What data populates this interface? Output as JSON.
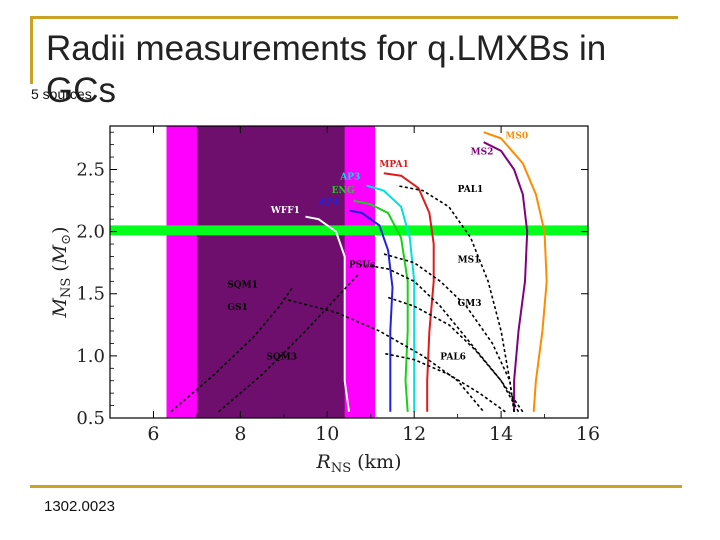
{
  "slide": {
    "title": "Radii measurements for q.LMXBs in GCs",
    "subtitle": "5 sources",
    "footer": "1302.0023"
  },
  "colors": {
    "rule": "#c9a226",
    "magenta": "#ff00ff",
    "purple": "#6e0f6e",
    "green_band": "#00ff1a"
  },
  "chart_data": {
    "type": "line",
    "xlabel": "R_NS (km)",
    "ylabel": "M_NS (M_⊙)",
    "xlim": [
      5,
      16
    ],
    "ylim": [
      0.5,
      2.85
    ],
    "xticks": [
      "6",
      "8",
      "10",
      "12",
      "14",
      "16"
    ],
    "yticks": [
      "0.5",
      "1.0",
      "1.5",
      "2.0",
      "2.5"
    ],
    "bands": [
      {
        "name": "magenta_band",
        "x": [
          6.3,
          11.1
        ],
        "color": "#ff00ff"
      },
      {
        "name": "purple_band",
        "x": [
          7.0,
          10.4
        ],
        "color": "#6e0f6e"
      },
      {
        "name": "green_band",
        "y": [
          1.97,
          2.05
        ],
        "color": "#00ff1a"
      }
    ],
    "series": [
      {
        "name": "MS0",
        "color": "#ff8c00",
        "style": "solid",
        "points": [
          [
            14.75,
            0.55
          ],
          [
            14.8,
            0.8
          ],
          [
            14.95,
            1.2
          ],
          [
            15.05,
            1.6
          ],
          [
            15.0,
            2.0
          ],
          [
            14.8,
            2.3
          ],
          [
            14.5,
            2.55
          ],
          [
            14.0,
            2.75
          ],
          [
            13.6,
            2.8
          ]
        ]
      },
      {
        "name": "MS2",
        "color": "#800080",
        "style": "solid",
        "points": [
          [
            14.3,
            0.55
          ],
          [
            14.3,
            0.8
          ],
          [
            14.4,
            1.2
          ],
          [
            14.55,
            1.6
          ],
          [
            14.6,
            2.0
          ],
          [
            14.5,
            2.3
          ],
          [
            14.3,
            2.5
          ],
          [
            14.0,
            2.65
          ],
          [
            13.6,
            2.72
          ]
        ]
      },
      {
        "name": "MPA1",
        "color": "#e01b1b",
        "style": "solid",
        "points": [
          [
            12.3,
            0.55
          ],
          [
            12.3,
            0.8
          ],
          [
            12.35,
            1.2
          ],
          [
            12.45,
            1.6
          ],
          [
            12.45,
            1.9
          ],
          [
            12.35,
            2.15
          ],
          [
            12.1,
            2.35
          ],
          [
            11.7,
            2.45
          ],
          [
            11.3,
            2.47
          ]
        ]
      },
      {
        "name": "AP3",
        "color": "#00e0e0",
        "style": "solid",
        "points": [
          [
            12.0,
            0.55
          ],
          [
            12.0,
            0.8
          ],
          [
            12.0,
            1.2
          ],
          [
            12.0,
            1.6
          ],
          [
            11.9,
            1.95
          ],
          [
            11.7,
            2.2
          ],
          [
            11.3,
            2.33
          ],
          [
            10.9,
            2.37
          ]
        ]
      },
      {
        "name": "ENG",
        "color": "#19d019",
        "style": "solid",
        "points": [
          [
            11.85,
            0.55
          ],
          [
            11.8,
            0.8
          ],
          [
            11.85,
            1.2
          ],
          [
            11.85,
            1.6
          ],
          [
            11.7,
            1.95
          ],
          [
            11.4,
            2.15
          ],
          [
            11.0,
            2.22
          ],
          [
            10.6,
            2.25
          ]
        ]
      },
      {
        "name": "AP4",
        "color": "#2222dd",
        "style": "solid",
        "points": [
          [
            11.45,
            0.55
          ],
          [
            11.45,
            0.8
          ],
          [
            11.45,
            1.2
          ],
          [
            11.5,
            1.55
          ],
          [
            11.4,
            1.85
          ],
          [
            11.2,
            2.05
          ],
          [
            10.8,
            2.15
          ],
          [
            10.5,
            2.17
          ]
        ]
      },
      {
        "name": "WFF1",
        "color": "#ffffff",
        "style": "solid",
        "points": [
          [
            10.5,
            0.55
          ],
          [
            10.4,
            0.8
          ],
          [
            10.4,
            1.2
          ],
          [
            10.4,
            1.5
          ],
          [
            10.4,
            1.8
          ],
          [
            10.2,
            2.0
          ],
          [
            9.8,
            2.1
          ],
          [
            9.5,
            2.12
          ]
        ]
      },
      {
        "name": "PAL1",
        "color": "#000000",
        "style": "dashed",
        "points": [
          [
            14.3,
            0.55
          ],
          [
            14.2,
            0.8
          ],
          [
            14.0,
            1.2
          ],
          [
            13.7,
            1.6
          ],
          [
            13.3,
            1.95
          ],
          [
            12.8,
            2.2
          ],
          [
            12.2,
            2.33
          ],
          [
            11.6,
            2.37
          ]
        ]
      },
      {
        "name": "MS1",
        "color": "#000000",
        "style": "dashed",
        "points": [
          [
            14.3,
            0.55
          ],
          [
            14.2,
            0.8
          ],
          [
            13.8,
            1.1
          ],
          [
            13.2,
            1.4
          ],
          [
            12.6,
            1.6
          ],
          [
            12.0,
            1.75
          ],
          [
            11.3,
            1.82
          ]
        ]
      },
      {
        "name": "GM3",
        "color": "#000000",
        "style": "dashed",
        "points": [
          [
            14.4,
            0.55
          ],
          [
            14.0,
            0.8
          ],
          [
            13.4,
            1.05
          ],
          [
            12.8,
            1.25
          ],
          [
            12.0,
            1.4
          ],
          [
            11.4,
            1.47
          ]
        ]
      },
      {
        "name": "PAL6",
        "color": "#000000",
        "style": "dashed",
        "points": [
          [
            14.1,
            0.55
          ],
          [
            13.5,
            0.7
          ],
          [
            12.8,
            0.85
          ],
          [
            12.0,
            0.97
          ],
          [
            11.3,
            1.02
          ]
        ]
      },
      {
        "name": "PSUs",
        "color": "#000000",
        "style": "dashed",
        "points": [
          [
            14.5,
            0.55
          ],
          [
            14.0,
            0.8
          ],
          [
            13.3,
            1.1
          ],
          [
            12.6,
            1.4
          ],
          [
            12.0,
            1.6
          ],
          [
            11.4,
            1.7
          ],
          [
            10.9,
            1.73
          ]
        ]
      },
      {
        "name": "SQM1",
        "color": "#000000",
        "style": "dashed",
        "points": [
          [
            6.4,
            0.55
          ],
          [
            7.4,
            0.85
          ],
          [
            8.3,
            1.15
          ],
          [
            8.9,
            1.4
          ],
          [
            9.2,
            1.55
          ]
        ]
      },
      {
        "name": "GS1",
        "color": "#000000",
        "style": "dashed",
        "points": [
          [
            9.1,
            1.45
          ],
          [
            10.2,
            1.35
          ],
          [
            11.2,
            1.2
          ],
          [
            12.2,
            1.0
          ],
          [
            13.0,
            0.8
          ],
          [
            13.6,
            0.55
          ]
        ]
      },
      {
        "name": "SQM3",
        "color": "#000000",
        "style": "dashed",
        "points": [
          [
            7.5,
            0.55
          ],
          [
            8.5,
            0.85
          ],
          [
            9.5,
            1.2
          ],
          [
            10.3,
            1.5
          ],
          [
            10.7,
            1.65
          ]
        ]
      }
    ],
    "labels": [
      {
        "text": "MS0",
        "color": "#ff8c00",
        "at": [
          14.1,
          2.75
        ]
      },
      {
        "text": "MS2",
        "color": "#800080",
        "at": [
          13.3,
          2.62
        ]
      },
      {
        "text": "MPA1",
        "color": "#e01b1b",
        "at": [
          11.2,
          2.52
        ]
      },
      {
        "text": "AP3",
        "color": "#00e0e0",
        "at": [
          10.3,
          2.42
        ]
      },
      {
        "text": "ENG",
        "color": "#19d019",
        "at": [
          10.1,
          2.31
        ]
      },
      {
        "text": "AP4",
        "color": "#2222dd",
        "at": [
          9.8,
          2.22
        ]
      },
      {
        "text": "WFF1",
        "color": "#ffffff",
        "at": [
          8.7,
          2.15
        ]
      },
      {
        "text": "PAL1",
        "color": "#000000",
        "at": [
          13.0,
          2.32
        ]
      },
      {
        "text": "PSUs",
        "color": "#000000",
        "at": [
          10.5,
          1.71
        ]
      },
      {
        "text": "MS1",
        "color": "#000000",
        "at": [
          13.0,
          1.75
        ]
      },
      {
        "text": "SQM1",
        "color": "#000000",
        "at": [
          7.7,
          1.55
        ]
      },
      {
        "text": "GS1",
        "color": "#000000",
        "at": [
          7.7,
          1.37
        ]
      },
      {
        "text": "GM3",
        "color": "#000000",
        "at": [
          13.0,
          1.4
        ]
      },
      {
        "text": "SQM3",
        "color": "#000000",
        "at": [
          8.6,
          0.97
        ]
      },
      {
        "text": "PAL6",
        "color": "#000000",
        "at": [
          12.6,
          0.97
        ]
      }
    ]
  }
}
